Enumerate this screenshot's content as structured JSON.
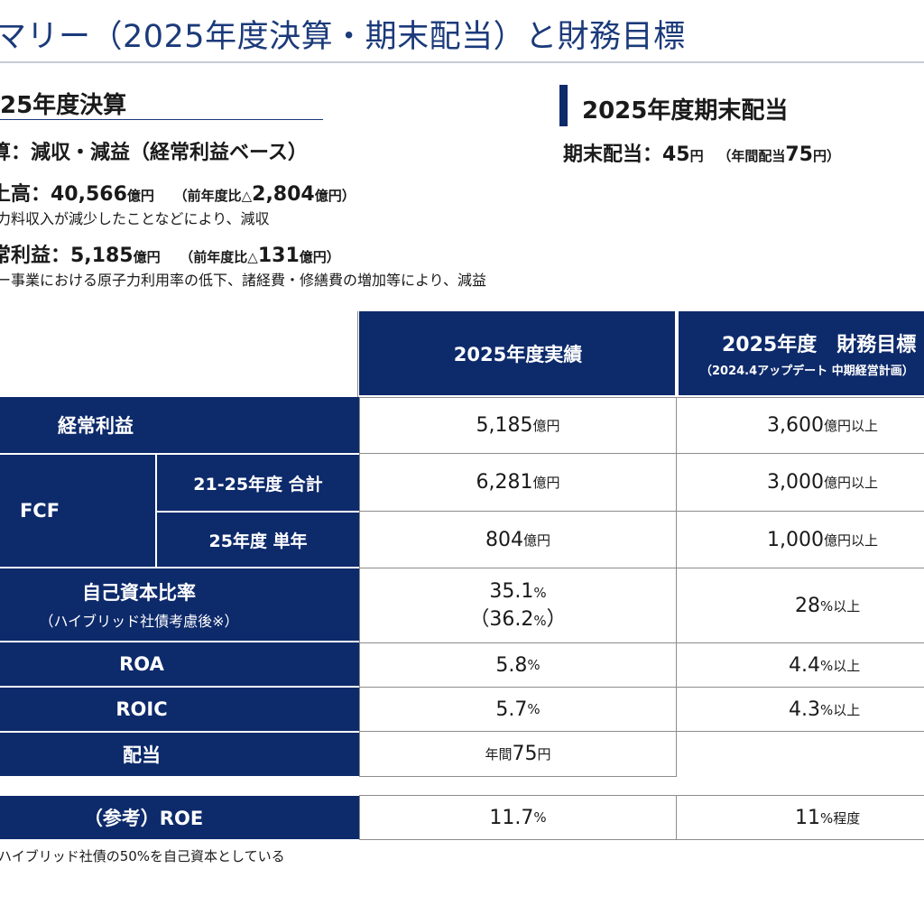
{
  "title": "マリー（2025年度決算・期末配当）と財務目標",
  "left_section": {
    "heading": "25年度決算",
    "line1": "算：減収・減益（経常利益ベース）",
    "sales_label": "上高：40,566",
    "sales_unit": "億円",
    "sales_compare_a": "（前年度比△",
    "sales_compare_b": "2,804",
    "sales_compare_c": "億円）",
    "sales_note": "力料収入が減少したことなどにより、減収",
    "profit_label": "常利益：5,185",
    "profit_unit": "億円",
    "profit_compare_a": "（前年度比△",
    "profit_compare_b": "131",
    "profit_compare_c": "億円）",
    "profit_note": "ー事業における原子力利用率の低下、諸経費・修繕費の増加等により、減益"
  },
  "right_section": {
    "heading": "2025年度期末配当",
    "div_label": "期末配当：45",
    "div_unit": "円",
    "div_annual_a": "（年間配当",
    "div_annual_b": "75",
    "div_annual_c": "円）"
  },
  "table": {
    "col_actual": "2025年度実績",
    "col_target_line1": "2025年度　財務目標",
    "col_target_line2": "（2024.4アップデート 中期経営計画）",
    "rows": {
      "ordinary": {
        "label": "経常利益",
        "actual": "5,185",
        "actual_unit": "億円",
        "target": "3,600",
        "target_unit": "億円以上"
      },
      "fcf_label": "FCF",
      "fcf_total": {
        "label": "21-25年度 合計",
        "actual": "6,281",
        "actual_unit": "億円",
        "target": "3,000",
        "target_unit": "億円以上"
      },
      "fcf_single": {
        "label": "25年度 単年",
        "actual": "804",
        "actual_unit": "億円",
        "target": "1,000",
        "target_unit": "億円以上"
      },
      "equity": {
        "label": "自己資本比率",
        "sublabel": "（ハイブリッド社債考慮後※）",
        "actual": "35.1",
        "actual_unit": "%",
        "actual2_a": "（36.2",
        "actual2_unit": "%",
        "actual2_b": "）",
        "target": "28",
        "target_unit": "%以上"
      },
      "roa": {
        "label": "ROA",
        "actual": "5.8",
        "actual_unit": "%",
        "target": "4.4",
        "target_unit": "%以上"
      },
      "roic": {
        "label": "ROIC",
        "actual": "5.7",
        "actual_unit": "%",
        "target": "4.3",
        "target_unit": "%以上"
      },
      "dividend": {
        "label": "配当",
        "actual_prefix": "年間",
        "actual": "75",
        "actual_unit": "円"
      },
      "roe": {
        "label": "（参考）ROE",
        "actual": "11.7",
        "actual_unit": "%",
        "target": "11",
        "target_unit": "%程度"
      }
    }
  },
  "footnote": "ハイブリッド社債の50%を自己資本としている",
  "colors": {
    "navy": "#0d2a6b",
    "title_blue": "#1b3a7a"
  }
}
